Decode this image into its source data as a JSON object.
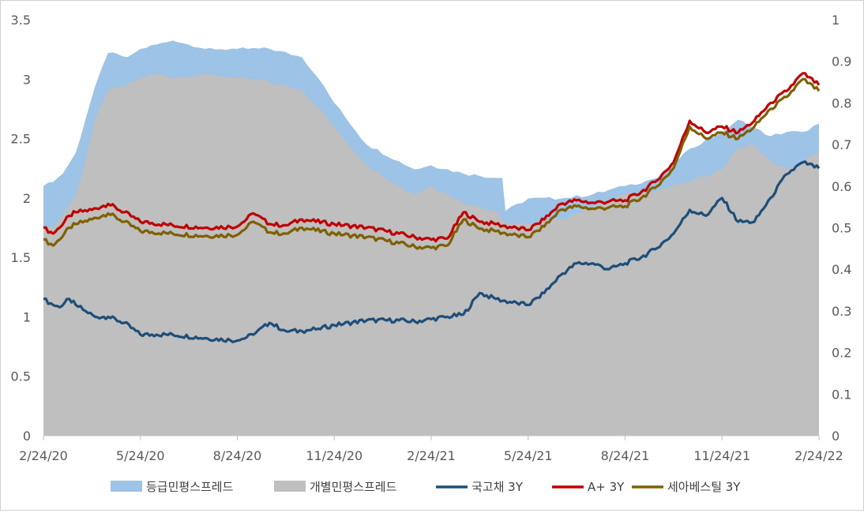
{
  "chart_data": {
    "type": "area+line",
    "x_ticks": [
      "2/24/20",
      "5/24/20",
      "8/24/20",
      "11/24/20",
      "2/24/21",
      "5/24/21",
      "8/24/21",
      "11/24/21",
      "2/24/22"
    ],
    "y_left": {
      "ticks": [
        "0",
        "0.5",
        "1",
        "1.5",
        "2",
        "2.5",
        "3",
        "3.5"
      ],
      "lim": [
        0,
        3.5
      ]
    },
    "y_right": {
      "ticks": [
        "0",
        "0.1",
        "0.2",
        "0.3",
        "0.4",
        "0.5",
        "0.6",
        "0.7",
        "0.8",
        "0.9",
        "1"
      ],
      "lim": [
        0,
        1
      ]
    },
    "grid": false,
    "legend_position": "bottom",
    "x_months": [
      0,
      1,
      2,
      3,
      3.5,
      4,
      5,
      6,
      7,
      8,
      9,
      10,
      11,
      12,
      13,
      14,
      15,
      16,
      17,
      18,
      19,
      20,
      21,
      22,
      23,
      24
    ],
    "series": [
      {
        "name": "등급민평스프레드",
        "kind": "area",
        "axis": "right",
        "color": "#9dc3e6",
        "x": [
          0,
          0.3,
          0.6,
          1.0,
          1.3,
          1.6,
          2.0,
          2.6,
          3.0,
          4.0,
          4.5,
          5.0,
          6.0,
          7.0,
          8.0,
          8.5,
          9.0,
          10.0,
          11.0,
          11.5,
          12.0,
          13.0,
          14.0,
          14.2,
          14.3,
          15.0,
          16.0,
          17.0,
          18.0,
          19.0,
          20.0,
          21.0,
          21.5,
          22.0,
          22.5,
          23.0,
          23.5,
          24.0
        ],
        "values": [
          0.6,
          0.61,
          0.63,
          0.68,
          0.76,
          0.84,
          0.92,
          0.91,
          0.93,
          0.95,
          0.94,
          0.93,
          0.93,
          0.93,
          0.91,
          0.86,
          0.8,
          0.7,
          0.66,
          0.64,
          0.65,
          0.63,
          0.62,
          0.62,
          0.54,
          0.57,
          0.57,
          0.58,
          0.6,
          0.62,
          0.69,
          0.73,
          0.76,
          0.74,
          0.72,
          0.73,
          0.73,
          0.75
        ]
      },
      {
        "name": "개별민평스프레드",
        "kind": "area",
        "axis": "right",
        "color": "#bfbfbf",
        "x": [
          0,
          0.3,
          0.6,
          1.0,
          1.3,
          1.6,
          2.0,
          2.5,
          3.0,
          3.5,
          4.0,
          5.0,
          6.0,
          7.0,
          8.0,
          8.5,
          9.0,
          10.0,
          11.0,
          11.5,
          12.0,
          13.0,
          14.0,
          14.3,
          15.0,
          16.0,
          17.0,
          18.0,
          19.0,
          20.0,
          21.0,
          21.5,
          22.0,
          22.5,
          23.0,
          23.5,
          24.0
        ],
        "values": [
          0.5,
          0.5,
          0.53,
          0.58,
          0.66,
          0.76,
          0.83,
          0.84,
          0.86,
          0.87,
          0.86,
          0.87,
          0.86,
          0.85,
          0.83,
          0.79,
          0.74,
          0.65,
          0.6,
          0.58,
          0.6,
          0.56,
          0.54,
          0.51,
          0.51,
          0.52,
          0.55,
          0.58,
          0.59,
          0.61,
          0.64,
          0.69,
          0.7,
          0.66,
          0.64,
          0.66,
          0.68
        ]
      },
      {
        "name": "국고채 3Y",
        "kind": "line",
        "axis": "left",
        "color": "#1f4e79",
        "x": [
          0,
          0.3,
          0.5,
          0.8,
          1.0,
          1.3,
          1.6,
          2.0,
          2.5,
          3.0,
          3.5,
          4.0,
          5.0,
          6.0,
          6.5,
          7.0,
          7.5,
          8.0,
          8.5,
          9.0,
          10.0,
          11.0,
          11.5,
          12.0,
          12.5,
          13.0,
          13.5,
          14.0,
          14.5,
          15.0,
          15.5,
          16.0,
          16.5,
          17.0,
          17.5,
          18.0,
          18.5,
          19.0,
          19.5,
          20.0,
          20.5,
          21.0,
          21.5,
          22.0,
          22.5,
          23.0,
          23.5,
          24.0
        ],
        "values": [
          1.15,
          1.1,
          1.08,
          1.15,
          1.1,
          1.05,
          1.0,
          1.0,
          0.95,
          0.85,
          0.85,
          0.85,
          0.82,
          0.8,
          0.85,
          0.95,
          0.88,
          0.88,
          0.9,
          0.93,
          0.97,
          0.97,
          0.96,
          0.98,
          1.0,
          1.02,
          1.2,
          1.15,
          1.12,
          1.1,
          1.2,
          1.35,
          1.45,
          1.45,
          1.4,
          1.45,
          1.5,
          1.58,
          1.7,
          1.9,
          1.85,
          2.0,
          1.8,
          1.8,
          2.0,
          2.2,
          2.3,
          2.25
        ]
      },
      {
        "name": "A+ 3Y",
        "kind": "line",
        "axis": "left",
        "color": "#c00000",
        "x": [
          0,
          0.3,
          0.5,
          0.8,
          1.0,
          1.5,
          2.0,
          2.5,
          3.0,
          4.0,
          5.0,
          6.0,
          6.5,
          7.0,
          7.5,
          8.0,
          9.0,
          10.0,
          11.0,
          11.5,
          12.0,
          12.5,
          13.0,
          13.5,
          14.0,
          14.5,
          15.0,
          15.5,
          16.0,
          16.5,
          17.0,
          17.5,
          18.0,
          18.5,
          19.0,
          19.5,
          20.0,
          20.5,
          21.0,
          21.5,
          22.0,
          22.5,
          23.0,
          23.5,
          24.0
        ],
        "values": [
          1.75,
          1.7,
          1.75,
          1.85,
          1.88,
          1.9,
          1.95,
          1.88,
          1.8,
          1.77,
          1.75,
          1.76,
          1.87,
          1.78,
          1.77,
          1.82,
          1.78,
          1.75,
          1.7,
          1.67,
          1.65,
          1.66,
          1.88,
          1.8,
          1.78,
          1.75,
          1.73,
          1.82,
          1.95,
          1.98,
          1.96,
          1.97,
          1.98,
          2.05,
          2.15,
          2.3,
          2.65,
          2.55,
          2.6,
          2.55,
          2.65,
          2.8,
          2.9,
          3.05,
          2.95
        ]
      },
      {
        "name": "세아베스틸 3Y",
        "kind": "line",
        "axis": "left",
        "color": "#7f6000",
        "x": [
          0,
          0.3,
          0.5,
          0.8,
          1.0,
          1.5,
          2.0,
          2.5,
          3.0,
          4.0,
          5.0,
          6.0,
          6.5,
          7.0,
          7.5,
          8.0,
          9.0,
          10.0,
          11.0,
          11.5,
          12.0,
          12.5,
          13.0,
          13.5,
          14.0,
          14.5,
          15.0,
          15.5,
          16.0,
          16.5,
          17.0,
          17.5,
          18.0,
          18.5,
          19.0,
          19.5,
          20.0,
          20.5,
          21.0,
          21.5,
          22.0,
          22.5,
          23.0,
          23.5,
          24.0
        ],
        "values": [
          1.65,
          1.6,
          1.65,
          1.75,
          1.78,
          1.82,
          1.87,
          1.8,
          1.72,
          1.7,
          1.68,
          1.69,
          1.8,
          1.71,
          1.7,
          1.75,
          1.7,
          1.67,
          1.62,
          1.59,
          1.58,
          1.6,
          1.82,
          1.74,
          1.72,
          1.69,
          1.67,
          1.76,
          1.9,
          1.93,
          1.91,
          1.92,
          1.93,
          2.0,
          2.1,
          2.25,
          2.6,
          2.5,
          2.55,
          2.5,
          2.6,
          2.75,
          2.85,
          3.0,
          2.9
        ]
      }
    ]
  }
}
